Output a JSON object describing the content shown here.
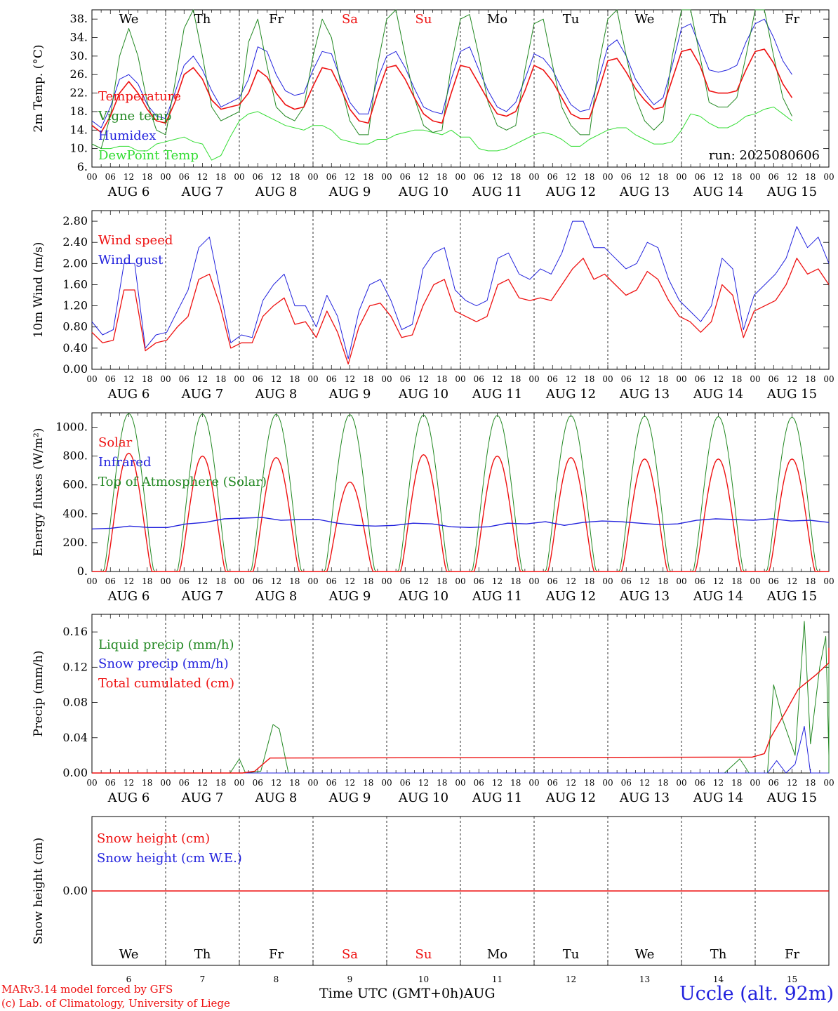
{
  "run_label": "run: 2025080606",
  "day_labels": [
    "AUG  6",
    "AUG  7",
    "AUG  8",
    "AUG  9",
    "AUG 10",
    "AUG 11",
    "AUG 12",
    "AUG 13",
    "AUG 14",
    "AUG 15"
  ],
  "hour_ticks": [
    "00",
    "06",
    "12",
    "18"
  ],
  "weekdays": [
    {
      "label": "We",
      "color": "#000000"
    },
    {
      "label": "Th",
      "color": "#000000"
    },
    {
      "label": "Fr",
      "color": "#000000"
    },
    {
      "label": "Sa",
      "color": "#ee1111"
    },
    {
      "label": "Su",
      "color": "#ee1111"
    },
    {
      "label": "Mo",
      "color": "#000000"
    },
    {
      "label": "Tu",
      "color": "#000000"
    },
    {
      "label": "We",
      "color": "#000000"
    },
    {
      "label": "Th",
      "color": "#000000"
    },
    {
      "label": "Fr",
      "color": "#000000"
    }
  ],
  "bottom_day_numbers": [
    "6",
    "7",
    "8",
    "9",
    "10",
    "11",
    "12",
    "13",
    "14",
    "15"
  ],
  "xlabel": "Time UTC (GMT+0h)",
  "xlabel_month": "AUG",
  "footer": {
    "model": "MARv3.14 model forced by GFS",
    "credit": "(c) Lab. of Climatology, University of Liege",
    "station": "Uccle (alt. 92m)"
  },
  "colors": {
    "red": "#ee1111",
    "darkgreen": "#228822",
    "blue": "#2222dd",
    "lightgreen": "#33dd33",
    "black": "#000000"
  },
  "chart_data": [
    {
      "type": "line",
      "ylabel": "2m Temp. (°C)",
      "ylim": [
        6,
        40
      ],
      "yticks": [
        "6.",
        "10.",
        "14.",
        "18.",
        "22.",
        "26.",
        "30.",
        "34.",
        "38."
      ],
      "ytick_values": [
        6,
        10,
        14,
        18,
        22,
        26,
        30,
        34,
        38
      ],
      "x": "hours since AUG 6 00 UTC (3-hourly)",
      "series": [
        {
          "name": "Temperature",
          "color": "#ee1111",
          "width": 1.6,
          "values": [
            15,
            13.5,
            17,
            22,
            24.5,
            22,
            18.5,
            16,
            15.5,
            20,
            26,
            27.5,
            25,
            20.5,
            18.5,
            19,
            19.5,
            22,
            27,
            25.5,
            22,
            19.5,
            18.5,
            19,
            23.5,
            27.5,
            27,
            23,
            18.5,
            16,
            15.5,
            22,
            27.5,
            28,
            25,
            21,
            17.5,
            16,
            15.5,
            22,
            28,
            27.5,
            24,
            20.5,
            17.5,
            17,
            18,
            22.5,
            28,
            27,
            24.5,
            21,
            17.5,
            16.5,
            16.5,
            22.5,
            29,
            29.5,
            26.5,
            23,
            20.5,
            18.5,
            19,
            25,
            31,
            31.5,
            28,
            22.5,
            22,
            22,
            22.5,
            27,
            31,
            31.5,
            28.5,
            24,
            21
          ]
        },
        {
          "name": "Vigne temp",
          "color": "#228822",
          "width": 1,
          "values": [
            11,
            10,
            17,
            30,
            36,
            30,
            20,
            14,
            13,
            24,
            36,
            40,
            30,
            19,
            16,
            17,
            18,
            33,
            38,
            28,
            19,
            17,
            16,
            19,
            30,
            38,
            34,
            24,
            16,
            13,
            13,
            28,
            38,
            40,
            30,
            21,
            15,
            13.5,
            14,
            28,
            38,
            39,
            30,
            20,
            15,
            14,
            15,
            27,
            37,
            38,
            28,
            19,
            15,
            13,
            13,
            28,
            38,
            40,
            30,
            21,
            16,
            14,
            16,
            30,
            40,
            40,
            30,
            20,
            19,
            19,
            21,
            30,
            40,
            40,
            30,
            21,
            17
          ]
        },
        {
          "name": "Humidex",
          "color": "#2222dd",
          "width": 1,
          "values": [
            16,
            14.5,
            19,
            25,
            26,
            24,
            19.5,
            17,
            16.5,
            22,
            28,
            30,
            27,
            22.5,
            19,
            20,
            21,
            25,
            32,
            31,
            26,
            22.5,
            21.5,
            22,
            27,
            31,
            30.5,
            25,
            20,
            17.5,
            17.5,
            25,
            30,
            31,
            27.5,
            23,
            19,
            18,
            17.5,
            25,
            31,
            32,
            27,
            22.5,
            19,
            18,
            20,
            25,
            30.5,
            29.5,
            27,
            23,
            19.5,
            18,
            18.5,
            25,
            32,
            33.5,
            30,
            25,
            22,
            19.5,
            21,
            28,
            36,
            37,
            32,
            27,
            26.5,
            27,
            28,
            33,
            37,
            38,
            34,
            29,
            26
          ]
        },
        {
          "name": "DewPoint Temp",
          "color": "#33dd33",
          "width": 1,
          "values": [
            11,
            10,
            10,
            10.5,
            10.5,
            9.5,
            9.5,
            11,
            11.5,
            12,
            12.5,
            11.5,
            11,
            7.5,
            8.5,
            12.5,
            16,
            17.5,
            18,
            17,
            16,
            15,
            14.5,
            14,
            15,
            15,
            14,
            12,
            11.5,
            11,
            11,
            12,
            12,
            13,
            13.5,
            14,
            14,
            13.5,
            13,
            14,
            12.5,
            12.5,
            10,
            9.5,
            9.5,
            10,
            11,
            12,
            13,
            13.5,
            13,
            12,
            10.5,
            10.5,
            12,
            13,
            14,
            14.5,
            14.5,
            13,
            12,
            11,
            11,
            11.5,
            14,
            17.5,
            17,
            15.5,
            14.5,
            14.5,
            15.5,
            17,
            17.5,
            18.5,
            19,
            17.5,
            16
          ]
        }
      ]
    },
    {
      "type": "line",
      "ylabel": "10m Wind (m/s)",
      "ylim": [
        0,
        3.0
      ],
      "yticks": [
        "0.00",
        "0.40",
        "0.80",
        "1.20",
        "1.60",
        "2.00",
        "2.40",
        "2.80"
      ],
      "ytick_values": [
        0,
        0.4,
        0.8,
        1.2,
        1.6,
        2.0,
        2.4,
        2.8
      ],
      "series": [
        {
          "name": "Wind speed",
          "color": "#ee1111",
          "width": 1.3,
          "values": [
            0.7,
            0.5,
            0.55,
            1.5,
            1.5,
            0.35,
            0.5,
            0.55,
            0.8,
            1.0,
            1.7,
            1.8,
            1.2,
            0.4,
            0.5,
            0.5,
            1.0,
            1.2,
            1.35,
            0.85,
            0.9,
            0.6,
            1.1,
            0.7,
            0.1,
            0.8,
            1.2,
            1.25,
            1.0,
            0.6,
            0.65,
            1.2,
            1.6,
            1.7,
            1.1,
            1.0,
            0.9,
            1.0,
            1.6,
            1.7,
            1.35,
            1.3,
            1.35,
            1.3,
            1.6,
            1.9,
            2.1,
            1.7,
            1.8,
            1.6,
            1.4,
            1.5,
            1.85,
            1.7,
            1.3,
            1.0,
            0.9,
            0.7,
            0.9,
            1.6,
            1.4,
            0.6,
            1.1,
            1.2,
            1.3,
            1.6,
            2.1,
            1.8,
            1.9,
            1.6
          ]
        },
        {
          "name": "Wind gust",
          "color": "#2222dd",
          "width": 1,
          "values": [
            0.9,
            0.65,
            0.75,
            2.0,
            2.0,
            0.4,
            0.65,
            0.7,
            1.1,
            1.5,
            2.3,
            2.5,
            1.5,
            0.5,
            0.65,
            0.6,
            1.3,
            1.6,
            1.8,
            1.2,
            1.2,
            0.8,
            1.4,
            1.0,
            0.2,
            1.1,
            1.6,
            1.7,
            1.3,
            0.75,
            0.85,
            1.9,
            2.2,
            2.3,
            1.5,
            1.3,
            1.2,
            1.3,
            2.1,
            2.2,
            1.8,
            1.7,
            1.9,
            1.8,
            2.2,
            2.8,
            2.8,
            2.3,
            2.3,
            2.1,
            1.9,
            2.0,
            2.4,
            2.3,
            1.7,
            1.3,
            1.1,
            0.9,
            1.2,
            2.1,
            1.9,
            0.75,
            1.4,
            1.6,
            1.8,
            2.1,
            2.7,
            2.3,
            2.5,
            2.0
          ]
        }
      ]
    },
    {
      "type": "line",
      "ylabel": "Energy fluxes (W/m²)",
      "ylim": [
        0,
        1100
      ],
      "yticks": [
        "0.",
        "200.",
        "400.",
        "600.",
        "800.",
        "1000."
      ],
      "ytick_values": [
        0,
        200,
        400,
        600,
        800,
        1000
      ],
      "series": [
        {
          "name": "Solar",
          "color": "#ee1111",
          "width": 1.4,
          "daily_peak": [
            820,
            800,
            790,
            620,
            810,
            800,
            790,
            780,
            780,
            780
          ]
        },
        {
          "name": "Infrared",
          "color": "#2222dd",
          "width": 1.4,
          "values": [
            295,
            300,
            315,
            305,
            305,
            330,
            340,
            365,
            370,
            375,
            355,
            360,
            360,
            335,
            320,
            315,
            320,
            335,
            330,
            310,
            305,
            310,
            335,
            330,
            345,
            320,
            340,
            350,
            345,
            335,
            325,
            330,
            355,
            365,
            360,
            355,
            365,
            350,
            355,
            340
          ]
        },
        {
          "name": "Top of Atmosphere (Solar)",
          "color": "#228822",
          "width": 1,
          "daily_peak": [
            1095,
            1092,
            1090,
            1088,
            1085,
            1082,
            1080,
            1077,
            1074,
            1070
          ]
        }
      ]
    },
    {
      "type": "line",
      "ylabel": "Precip (mm/h)",
      "ylim": [
        0,
        0.18
      ],
      "yticks": [
        "0.00",
        "0.04",
        "0.08",
        "0.12",
        "0.16"
      ],
      "ytick_values": [
        0,
        0.04,
        0.08,
        0.12,
        0.16
      ],
      "series": [
        {
          "name": "Liquid precip (mm/h)",
          "color": "#228822",
          "width": 1
        },
        {
          "name": "Snow precip (mm/h)",
          "color": "#2222dd",
          "width": 1
        },
        {
          "name": "Total cumulated (cm)",
          "color": "#ee1111",
          "width": 1.4
        }
      ]
    },
    {
      "type": "line",
      "ylabel": "Snow height (cm)",
      "ylim": [
        -1,
        1
      ],
      "yticks": [
        "0.00"
      ],
      "ytick_values": [
        0
      ],
      "series": [
        {
          "name": "Snow height (cm)",
          "color": "#ee1111",
          "width": 1.4,
          "values": [
            0,
            0
          ]
        },
        {
          "name": "Snow height (cm W.E.)",
          "color": "#2222dd",
          "width": 1,
          "values": [
            0,
            0
          ]
        }
      ]
    }
  ]
}
